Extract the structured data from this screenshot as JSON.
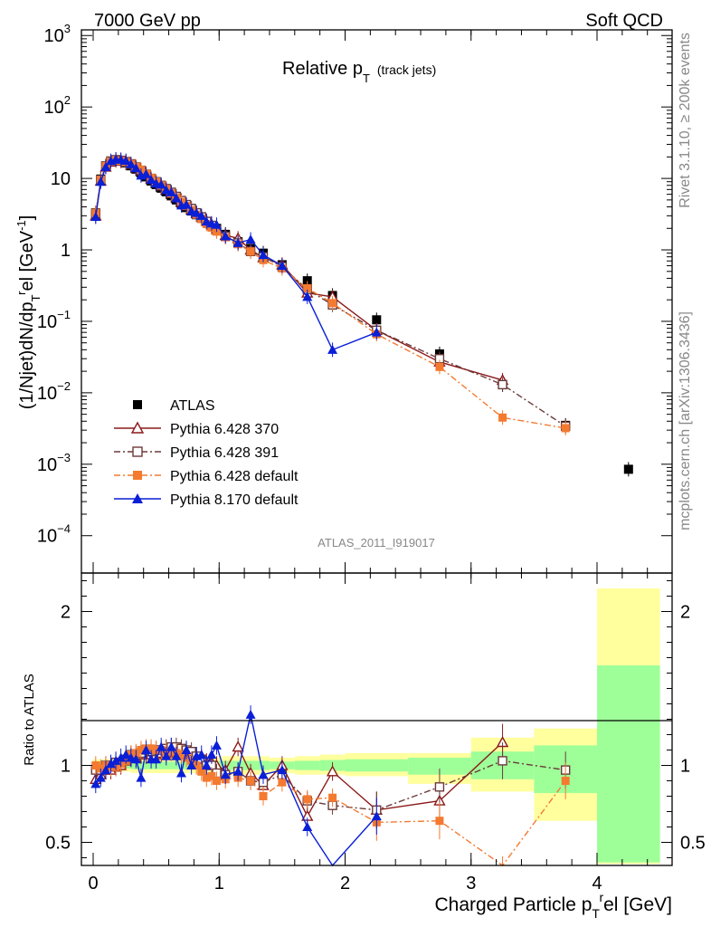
{
  "header": {
    "left": "7000 GeV pp",
    "right": "Soft QCD"
  },
  "side_text": {
    "top": "Rivet 3.1.10, ≥ 200k events",
    "bottom": "mcplots.cern.ch [arXiv:1306.3436]"
  },
  "plot_title": {
    "main": "Relative p",
    "sub": "T",
    "tail": "(track jets)"
  },
  "watermark": "ATLAS_2011_I919017",
  "chart_data": {
    "type": "scatter",
    "main_panel": {
      "ylabel": "(1/Njet)dN/dp",
      "ylabel_sub": "T",
      "ylabel_sup": "r",
      "ylabel_tail": "el [GeV",
      "ylabel_unit_sup": "-1",
      "ylabel_close": "]",
      "yscale": "log",
      "ylim": [
        3e-05,
        1200
      ],
      "yticks": [
        {
          "v": 1000,
          "base": "10",
          "exp": "3"
        },
        {
          "v": 100,
          "base": "10",
          "exp": "2"
        },
        {
          "v": 10,
          "base": "10",
          "exp": ""
        },
        {
          "v": 1,
          "base": "1",
          "exp": ""
        },
        {
          "v": 0.1,
          "base": "10",
          "exp": "−1"
        },
        {
          "v": 0.01,
          "base": "10",
          "exp": "−2"
        },
        {
          "v": 0.001,
          "base": "10",
          "exp": "−3"
        },
        {
          "v": 0.0001,
          "base": "10",
          "exp": "−4"
        }
      ]
    },
    "ratio_panel": {
      "ylabel": "Ratio to ATLAS",
      "ylim": [
        0.35,
        2.25
      ],
      "yticks": [
        {
          "v": 0.5,
          "label": "0.5"
        },
        {
          "v": 1,
          "label": "1"
        },
        {
          "v": 2,
          "label": "2"
        }
      ],
      "bands": [
        {
          "x0": 0.0,
          "x1": 0.3,
          "y_lo": 0.96,
          "y_hi": 1.04,
          "g_lo": 0.98,
          "g_hi": 1.02
        },
        {
          "x0": 0.3,
          "x1": 1.0,
          "y_lo": 0.95,
          "y_hi": 1.05,
          "g_lo": 0.975,
          "g_hi": 1.025
        },
        {
          "x0": 1.0,
          "x1": 1.4,
          "y_lo": 0.94,
          "y_hi": 1.06,
          "g_lo": 0.97,
          "g_hi": 1.03
        },
        {
          "x0": 1.4,
          "x1": 1.6,
          "y_lo": 0.95,
          "y_hi": 1.05,
          "g_lo": 0.975,
          "g_hi": 1.025
        },
        {
          "x0": 1.6,
          "x1": 1.8,
          "y_lo": 0.94,
          "y_hi": 1.06,
          "g_lo": 0.97,
          "g_hi": 1.03
        },
        {
          "x0": 1.8,
          "x1": 2.0,
          "y_lo": 0.94,
          "y_hi": 1.07,
          "g_lo": 0.965,
          "g_hi": 1.035
        },
        {
          "x0": 2.0,
          "x1": 2.5,
          "y_lo": 0.93,
          "y_hi": 1.08,
          "g_lo": 0.96,
          "g_hi": 1.04
        },
        {
          "x0": 2.5,
          "x1": 3.0,
          "y_lo": 0.88,
          "y_hi": 1.08,
          "g_lo": 0.94,
          "g_hi": 1.05
        },
        {
          "x0": 3.0,
          "x1": 3.5,
          "y_lo": 0.83,
          "y_hi": 1.18,
          "g_lo": 0.91,
          "g_hi": 1.09
        },
        {
          "x0": 3.5,
          "x1": 4.0,
          "y_lo": 0.64,
          "y_hi": 1.24,
          "g_lo": 0.82,
          "g_hi": 1.13
        },
        {
          "x0": 4.0,
          "x1": 4.5,
          "y_lo": 0.36,
          "y_hi": 2.15,
          "g_lo": 0.37,
          "g_hi": 1.65
        }
      ]
    },
    "xlabel": "Charged Particle p",
    "xlabel_sub": "T",
    "xlabel_sup": "r",
    "xlabel_tail": "el [GeV]",
    "xlim": [
      -0.1,
      4.5
    ],
    "xticks": [
      0,
      1,
      2,
      3,
      4
    ],
    "legend_position": "bottom-left",
    "series": [
      {
        "name": "ATLAS",
        "color": "#000000",
        "marker": "square-filled",
        "line": "none",
        "x": [
          0.02,
          0.06,
          0.1,
          0.14,
          0.18,
          0.22,
          0.26,
          0.3,
          0.34,
          0.38,
          0.42,
          0.46,
          0.5,
          0.54,
          0.58,
          0.62,
          0.66,
          0.7,
          0.74,
          0.78,
          0.82,
          0.86,
          0.9,
          0.94,
          0.98,
          1.05,
          1.15,
          1.25,
          1.35,
          1.5,
          1.7,
          1.9,
          2.25,
          2.75,
          3.25,
          3.75,
          4.25
        ],
        "y": [
          3.3,
          9.8,
          15.0,
          17.5,
          18.0,
          17.5,
          16.5,
          15.0,
          13.5,
          12.0,
          10.5,
          9.2,
          8.2,
          7.3,
          6.5,
          5.7,
          5.0,
          4.4,
          3.9,
          3.5,
          3.1,
          2.8,
          2.5,
          2.2,
          2.0,
          1.65,
          1.3,
          1.05,
          0.9,
          0.62,
          0.37,
          0.23,
          0.105,
          0.035,
          0.013,
          0.0035,
          0.00085
        ]
      },
      {
        "name": "Pythia 6.428 370",
        "color": "#8b1a1a",
        "marker": "triangle-open",
        "line": "solid",
        "x": [
          0.02,
          0.06,
          0.1,
          0.14,
          0.18,
          0.22,
          0.26,
          0.3,
          0.34,
          0.38,
          0.42,
          0.46,
          0.5,
          0.54,
          0.58,
          0.62,
          0.66,
          0.7,
          0.74,
          0.78,
          0.82,
          0.86,
          0.9,
          0.94,
          0.98,
          1.05,
          1.15,
          1.25,
          1.35,
          1.5,
          1.7,
          1.9,
          2.25,
          2.75,
          3.25
        ],
        "y": [
          3.0,
          9.2,
          14.5,
          17.0,
          17.8,
          17.5,
          17.0,
          15.8,
          14.2,
          12.8,
          11.2,
          9.8,
          8.8,
          7.9,
          7.0,
          6.2,
          5.4,
          4.7,
          4.2,
          3.7,
          3.3,
          2.9,
          2.55,
          2.25,
          2.0,
          1.6,
          1.45,
          1.0,
          0.78,
          0.62,
          0.25,
          0.22,
          0.075,
          0.027,
          0.015
        ],
        "ratio": [
          0.91,
          0.94,
          0.97,
          0.97,
          0.99,
          1.0,
          1.03,
          1.05,
          1.05,
          1.07,
          1.07,
          1.07,
          1.07,
          1.08,
          1.08,
          1.09,
          1.08,
          1.07,
          1.08,
          1.06,
          1.06,
          1.04,
          1.02,
          1.02,
          1.0,
          0.97,
          1.12,
          0.95,
          0.87,
          1.0,
          0.67,
          0.96,
          0.71,
          0.77,
          1.15
        ]
      },
      {
        "name": "Pythia 6.428 391",
        "color": "#6b3a3a",
        "marker": "square-open",
        "line": "dashdot",
        "x": [
          0.02,
          0.06,
          0.1,
          0.14,
          0.18,
          0.22,
          0.26,
          0.3,
          0.34,
          0.38,
          0.42,
          0.46,
          0.5,
          0.54,
          0.58,
          0.62,
          0.66,
          0.7,
          0.74,
          0.78,
          0.82,
          0.86,
          0.9,
          0.94,
          0.98,
          1.05,
          1.15,
          1.25,
          1.35,
          1.5,
          1.7,
          1.9,
          2.25,
          2.75,
          3.25,
          3.75
        ],
        "y": [
          3.2,
          9.5,
          15.0,
          17.5,
          18.3,
          17.9,
          17.2,
          16.0,
          14.5,
          13.0,
          11.5,
          10.0,
          9.0,
          8.0,
          7.2,
          6.4,
          5.6,
          4.9,
          4.3,
          3.8,
          3.3,
          2.9,
          2.5,
          2.2,
          1.9,
          1.55,
          1.25,
          0.95,
          0.8,
          0.58,
          0.28,
          0.17,
          0.075,
          0.03,
          0.013,
          0.0034
        ],
        "ratio": [
          0.97,
          0.97,
          1.0,
          1.0,
          1.02,
          1.02,
          1.04,
          1.07,
          1.07,
          1.08,
          1.1,
          1.09,
          1.1,
          1.1,
          1.11,
          1.12,
          1.12,
          1.11,
          1.1,
          1.09,
          1.06,
          1.04,
          1.0,
          1.0,
          0.95,
          0.94,
          0.96,
          0.9,
          0.89,
          0.94,
          0.77,
          0.74,
          0.71,
          0.86,
          1.03,
          0.97
        ]
      },
      {
        "name": "Pythia 6.428 default",
        "color": "#f47a30",
        "marker": "square-filled",
        "line": "dashdot",
        "x": [
          0.02,
          0.06,
          0.1,
          0.14,
          0.18,
          0.22,
          0.26,
          0.3,
          0.34,
          0.38,
          0.42,
          0.46,
          0.5,
          0.54,
          0.58,
          0.62,
          0.66,
          0.7,
          0.74,
          0.78,
          0.82,
          0.86,
          0.9,
          0.94,
          0.98,
          1.05,
          1.15,
          1.25,
          1.35,
          1.5,
          1.7,
          1.9,
          2.25,
          2.75,
          3.25,
          3.75
        ],
        "y": [
          3.3,
          9.6,
          15.0,
          17.3,
          17.8,
          17.6,
          17.0,
          16.0,
          14.6,
          13.2,
          11.7,
          10.2,
          9.0,
          8.0,
          7.1,
          6.2,
          5.4,
          4.7,
          4.1,
          3.6,
          3.1,
          2.7,
          2.3,
          2.05,
          1.8,
          1.5,
          1.2,
          0.95,
          0.72,
          0.55,
          0.29,
          0.18,
          0.066,
          0.023,
          0.0045,
          0.0032
        ],
        "ratio": [
          1.0,
          0.98,
          1.0,
          0.99,
          0.99,
          1.01,
          1.03,
          1.07,
          1.08,
          1.1,
          1.11,
          1.11,
          1.1,
          1.1,
          1.09,
          1.09,
          1.08,
          1.07,
          1.05,
          1.03,
          1.0,
          0.96,
          0.92,
          0.93,
          0.9,
          0.91,
          0.92,
          0.9,
          0.8,
          0.89,
          0.78,
          0.79,
          0.63,
          0.64,
          0.29,
          0.9
        ]
      },
      {
        "name": "Pythia 8.170 default",
        "color": "#0a1fd6",
        "marker": "triangle-filled",
        "line": "solid",
        "x": [
          0.02,
          0.06,
          0.1,
          0.14,
          0.18,
          0.22,
          0.26,
          0.3,
          0.34,
          0.38,
          0.42,
          0.46,
          0.5,
          0.54,
          0.58,
          0.62,
          0.66,
          0.7,
          0.74,
          0.78,
          0.82,
          0.86,
          0.9,
          0.94,
          0.98,
          1.05,
          1.15,
          1.25,
          1.35,
          1.5,
          1.7,
          1.9,
          2.25
        ],
        "y": [
          2.9,
          9.0,
          14.5,
          17.6,
          18.5,
          18.3,
          17.7,
          15.8,
          14.0,
          11.0,
          11.5,
          9.6,
          8.5,
          8.2,
          6.9,
          6.4,
          5.3,
          4.2,
          4.3,
          3.5,
          3.3,
          3.0,
          2.5,
          2.35,
          2.25,
          1.55,
          1.25,
          1.4,
          0.85,
          0.6,
          0.22,
          0.04,
          0.07
        ],
        "ratio": [
          0.88,
          0.92,
          0.97,
          1.01,
          1.03,
          1.05,
          1.07,
          1.05,
          1.04,
          0.92,
          1.1,
          1.04,
          1.04,
          1.12,
          1.06,
          1.12,
          1.06,
          0.95,
          1.1,
          1.0,
          1.06,
          1.07,
          1.0,
          1.07,
          1.13,
          0.94,
          0.96,
          1.33,
          0.94,
          0.97,
          0.6,
          0.17,
          0.67
        ]
      }
    ]
  }
}
